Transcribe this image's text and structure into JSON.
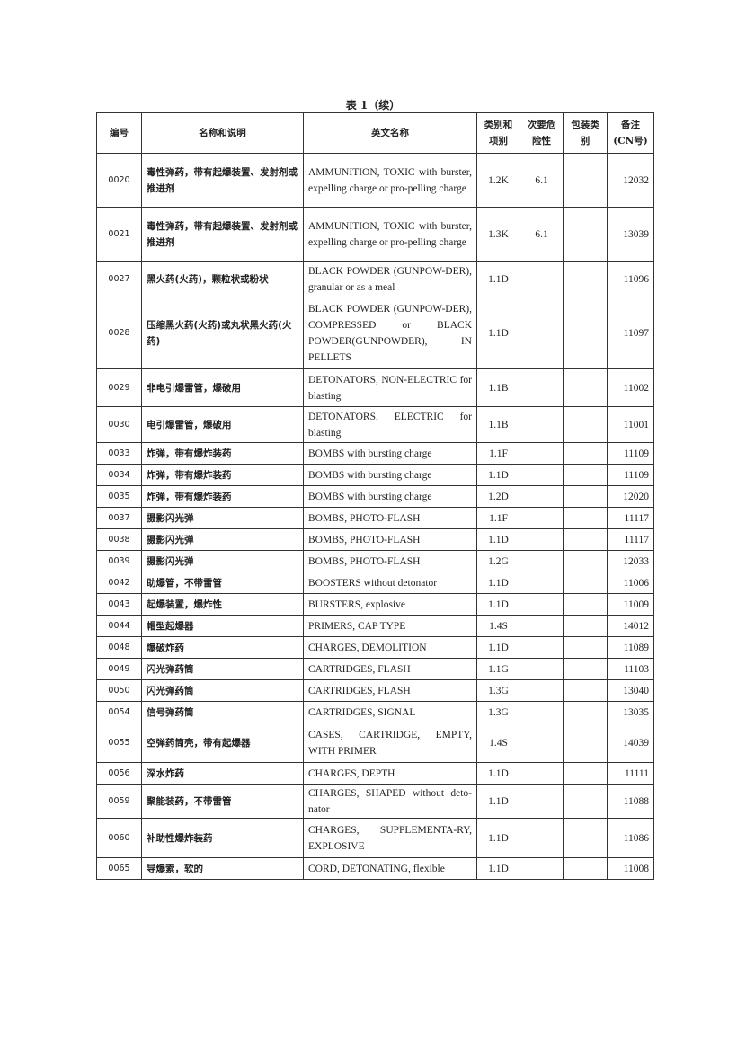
{
  "title": "表 1（续）",
  "headers": [
    "编号",
    "名称和说明",
    "英文名称",
    "类别和项别",
    "次要危险性",
    "包装类别",
    "备注(CN号)"
  ],
  "rows": [
    {
      "no": "0020",
      "cn": "毒性弹药，带有起爆装置、发射剂或推进剂",
      "en": "AMMUNITION, TOXIC with burster, expelling charge or pro-pelling charge",
      "cls": "1.2K",
      "sub": "6.1",
      "pkg": "",
      "cnno": "12032"
    },
    {
      "no": "0021",
      "cn": "毒性弹药，带有起爆装置、发射剂或推进剂",
      "en": "AMMUNITION, TOXIC with burster, expelling charge or pro-pelling charge",
      "cls": "1.3K",
      "sub": "6.1",
      "pkg": "",
      "cnno": "13039"
    },
    {
      "no": "0027",
      "cn": "黑火药(火药)，颗粒状或粉状",
      "en": "BLACK POWDER (GUNPOW-DER), granular or as a meal",
      "cls": "1.1D",
      "sub": "",
      "pkg": "",
      "cnno": "11096"
    },
    {
      "no": "0028",
      "cn": "压缩黑火药(火药)或丸状黑火药(火药)",
      "en": "BLACK POWDER (GUNPOW-DER), COMPRESSED or BLACK POWDER(GUNPOWDER), IN PELLETS",
      "cls": "1.1D",
      "sub": "",
      "pkg": "",
      "cnno": "11097"
    },
    {
      "no": "0029",
      "cn": "非电引爆雷管，爆破用",
      "en": "DETONATORS, NON-ELECTRIC for blasting",
      "cls": "1.1B",
      "sub": "",
      "pkg": "",
      "cnno": "11002"
    },
    {
      "no": "0030",
      "cn": "电引爆雷管，爆破用",
      "en": "DETONATORS, ELECTRIC for blasting",
      "cls": "1.1B",
      "sub": "",
      "pkg": "",
      "cnno": "11001"
    },
    {
      "no": "0033",
      "cn": "炸弹，带有爆炸装药",
      "en": "BOMBS with bursting charge",
      "cls": "1.1F",
      "sub": "",
      "pkg": "",
      "cnno": "11109"
    },
    {
      "no": "0034",
      "cn": "炸弹，带有爆炸装药",
      "en": "BOMBS with bursting charge",
      "cls": "1.1D",
      "sub": "",
      "pkg": "",
      "cnno": "11109"
    },
    {
      "no": "0035",
      "cn": "炸弹，带有爆炸装药",
      "en": "BOMBS with bursting charge",
      "cls": "1.2D",
      "sub": "",
      "pkg": "",
      "cnno": "12020"
    },
    {
      "no": "0037",
      "cn": "摄影闪光弹",
      "en": "BOMBS, PHOTO-FLASH",
      "cls": "1.1F",
      "sub": "",
      "pkg": "",
      "cnno": "11117"
    },
    {
      "no": "0038",
      "cn": "摄影闪光弹",
      "en": "BOMBS, PHOTO-FLASH",
      "cls": "1.1D",
      "sub": "",
      "pkg": "",
      "cnno": "11117"
    },
    {
      "no": "0039",
      "cn": "摄影闪光弹",
      "en": "BOMBS, PHOTO-FLASH",
      "cls": "1.2G",
      "sub": "",
      "pkg": "",
      "cnno": "12033"
    },
    {
      "no": "0042",
      "cn": "助爆管，不带雷管",
      "en": "BOOSTERS without detonator",
      "cls": "1.1D",
      "sub": "",
      "pkg": "",
      "cnno": "11006"
    },
    {
      "no": "0043",
      "cn": "起爆装置，爆炸性",
      "en": "BURSTERS, explosive",
      "cls": "1.1D",
      "sub": "",
      "pkg": "",
      "cnno": "11009"
    },
    {
      "no": "0044",
      "cn": "帽型起爆器",
      "en": "PRIMERS, CAP TYPE",
      "cls": "1.4S",
      "sub": "",
      "pkg": "",
      "cnno": "14012"
    },
    {
      "no": "0048",
      "cn": "爆破炸药",
      "en": "CHARGES, DEMOLITION",
      "cls": "1.1D",
      "sub": "",
      "pkg": "",
      "cnno": "11089"
    },
    {
      "no": "0049",
      "cn": "闪光弹药筒",
      "en": "CARTRIDGES, FLASH",
      "cls": "1.1G",
      "sub": "",
      "pkg": "",
      "cnno": "11103"
    },
    {
      "no": "0050",
      "cn": "闪光弹药筒",
      "en": "CARTRIDGES, FLASH",
      "cls": "1.3G",
      "sub": "",
      "pkg": "",
      "cnno": "13040"
    },
    {
      "no": "0054",
      "cn": "信号弹药筒",
      "en": "CARTRIDGES, SIGNAL",
      "cls": "1.3G",
      "sub": "",
      "pkg": "",
      "cnno": "13035"
    },
    {
      "no": "0055",
      "cn": "空弹药筒壳，带有起爆器",
      "en": "CASES, CARTRIDGE, EMPTY, WITH PRIMER",
      "cls": "1.4S",
      "sub": "",
      "pkg": "",
      "cnno": "14039"
    },
    {
      "no": "0056",
      "cn": "深水炸药",
      "en": "CHARGES, DEPTH",
      "cls": "1.1D",
      "sub": "",
      "pkg": "",
      "cnno": "11111"
    },
    {
      "no": "0059",
      "cn": "聚能装药，不带雷管",
      "en": "CHARGES, SHAPED without deto-nator",
      "cls": "1.1D",
      "sub": "",
      "pkg": "",
      "cnno": "11088"
    },
    {
      "no": "0060",
      "cn": "补助性爆炸装药",
      "en": "CHARGES, SUPPLEMENTA-RY, EXPLOSIVE",
      "cls": "1.1D",
      "sub": "",
      "pkg": "",
      "cnno": "11086"
    },
    {
      "no": "0065",
      "cn": "导爆索，软的",
      "en": "CORD, DETONATING, flexible",
      "cls": "1.1D",
      "sub": "",
      "pkg": "",
      "cnno": "11008"
    }
  ]
}
